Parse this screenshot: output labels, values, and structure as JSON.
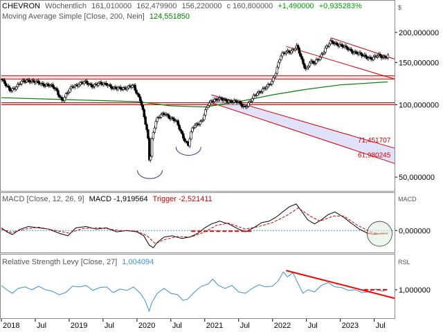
{
  "colors": {
    "price": "#000000",
    "up_candle": "#ffffff",
    "down_candle": "#000000",
    "sma": "#008000",
    "support": "#d40000",
    "channel_fill": "#c8c8f4",
    "macd": "#000000",
    "trigger": "#d40000",
    "zero_line": "#3a8fd0",
    "rsl": "#3a8fd0",
    "up_value": "#00a000",
    "trend": "#ff0000",
    "gray": "#555555",
    "highlight_circle": "#e0f0e0"
  },
  "header": {
    "symbol": "CHEVRON",
    "interval": "Wöchentlich",
    "open": "161,010000",
    "high": "162,479900",
    "low": "156,220000",
    "close": "c 160,800000",
    "change": "+1,490000",
    "change_pct": "+0,935283%"
  },
  "sma_label": "Moving Average Simple [Close, 200, Nein]",
  "sma_value": "124,551850",
  "macd_label": "MACD [Close, 12, 26, 9]",
  "macd_value": "MACD -1,919564",
  "trigger_label": "Trigger -2,521411",
  "rsl_label": "Relative Strength Levy [Close, 27]",
  "rsl_value": "1,004094",
  "chart_data": [
    {
      "type": "candlestick",
      "title": "CHEVRON",
      "scale": "log",
      "ylim": [
        45,
        215
      ],
      "yaxis_unit_label": "$",
      "yticks": [
        {
          "value": 200,
          "label": "200,000000"
        },
        {
          "value": 150,
          "label": "150,000000"
        },
        {
          "value": 100,
          "label": "100,000000"
        },
        {
          "value": 50,
          "label": "50,000000"
        }
      ],
      "xticks": [
        "2018",
        "Jul",
        "2019",
        "Jul",
        "2020",
        "Jul",
        "2021",
        "Jul",
        "2022",
        "Jul",
        "2023",
        "Jul"
      ],
      "x_range": [
        2018.0,
        2023.8
      ],
      "price_waypoints": [
        [
          2018.0,
          128
        ],
        [
          2018.05,
          122
        ],
        [
          2018.12,
          115
        ],
        [
          2018.2,
          118
        ],
        [
          2018.3,
          124
        ],
        [
          2018.4,
          127
        ],
        [
          2018.5,
          124
        ],
        [
          2018.6,
          122
        ],
        [
          2018.7,
          121
        ],
        [
          2018.8,
          116
        ],
        [
          2018.9,
          104
        ],
        [
          2018.96,
          110
        ],
        [
          2019.05,
          120
        ],
        [
          2019.15,
          122
        ],
        [
          2019.25,
          124
        ],
        [
          2019.35,
          120
        ],
        [
          2019.45,
          122
        ],
        [
          2019.55,
          123
        ],
        [
          2019.65,
          116
        ],
        [
          2019.75,
          118
        ],
        [
          2019.85,
          117
        ],
        [
          2019.95,
          120
        ],
        [
          2020.0,
          112
        ],
        [
          2020.05,
          105
        ],
        [
          2020.1,
          90
        ],
        [
          2020.16,
          74
        ],
        [
          2020.19,
          55
        ],
        [
          2020.22,
          72
        ],
        [
          2020.28,
          86
        ],
        [
          2020.35,
          90
        ],
        [
          2020.42,
          92
        ],
        [
          2020.5,
          88
        ],
        [
          2020.58,
          85
        ],
        [
          2020.66,
          76
        ],
        [
          2020.72,
          70
        ],
        [
          2020.76,
          68
        ],
        [
          2020.82,
          80
        ],
        [
          2020.9,
          84
        ],
        [
          2020.96,
          86
        ],
        [
          2021.0,
          92
        ],
        [
          2021.05,
          100
        ],
        [
          2021.12,
          105
        ],
        [
          2021.2,
          106
        ],
        [
          2021.3,
          104
        ],
        [
          2021.4,
          104
        ],
        [
          2021.5,
          102
        ],
        [
          2021.58,
          98
        ],
        [
          2021.66,
          102
        ],
        [
          2021.75,
          110
        ],
        [
          2021.85,
          116
        ],
        [
          2021.95,
          120
        ],
        [
          2022.0,
          126
        ],
        [
          2022.05,
          138
        ],
        [
          2022.12,
          160
        ],
        [
          2022.2,
          165
        ],
        [
          2022.28,
          168
        ],
        [
          2022.36,
          175
        ],
        [
          2022.44,
          150
        ],
        [
          2022.5,
          140
        ],
        [
          2022.55,
          152
        ],
        [
          2022.62,
          148
        ],
        [
          2022.7,
          158
        ],
        [
          2022.78,
          172
        ],
        [
          2022.86,
          182
        ],
        [
          2022.92,
          180
        ],
        [
          2023.0,
          178
        ],
        [
          2023.08,
          172
        ],
        [
          2023.16,
          168
        ],
        [
          2023.24,
          165
        ],
        [
          2023.32,
          160
        ],
        [
          2023.4,
          158
        ],
        [
          2023.48,
          156
        ],
        [
          2023.56,
          160
        ],
        [
          2023.64,
          158
        ],
        [
          2023.72,
          161
        ]
      ],
      "sma_200": {
        "name": "Moving Average Simple [Close, 200, Nein]",
        "points": [
          [
            2018.0,
            107
          ],
          [
            2019.0,
            105
          ],
          [
            2020.0,
            103
          ],
          [
            2020.5,
            99
          ],
          [
            2021.0,
            98
          ],
          [
            2021.5,
            103
          ],
          [
            2022.0,
            110
          ],
          [
            2022.5,
            116
          ],
          [
            2023.0,
            121
          ],
          [
            2023.7,
            124.55
          ]
        ]
      },
      "support_bands": [
        [
          128,
          132
        ],
        [
          100,
          102
        ]
      ],
      "annotations": [
        {
          "label": "71,451707",
          "value": 71.451707
        },
        {
          "label": "61,980245",
          "value": 61.980245
        }
      ],
      "channel": {
        "upper": [
          [
            2021.1,
            110
          ],
          [
            2023.8,
            66
          ]
        ],
        "lower": [
          [
            2021.1,
            102
          ],
          [
            2023.8,
            57
          ]
        ]
      },
      "upper_trend": {
        "upper": [
          [
            2022.86,
            190
          ],
          [
            2023.8,
            155
          ]
        ],
        "lower": [
          [
            2022.2,
            175
          ],
          [
            2023.8,
            128
          ]
        ]
      },
      "resistance_line": [
        [
          2022.86,
          188
        ],
        [
          2023.8,
          155
        ]
      ]
    },
    {
      "type": "line",
      "title": "MACD [Close, 12, 26, 9]",
      "ylim": [
        -15,
        21
      ],
      "yaxis_unit_label": "MACD",
      "yticks": [
        {
          "value": 0,
          "label": "0,000000"
        }
      ],
      "series": [
        {
          "name": "MACD",
          "values": [
            [
              2018.0,
              2
            ],
            [
              2018.08,
              -1
            ],
            [
              2018.16,
              -3
            ],
            [
              2018.28,
              1
            ],
            [
              2018.4,
              3
            ],
            [
              2018.55,
              2
            ],
            [
              2018.7,
              1
            ],
            [
              2018.85,
              -2
            ],
            [
              2018.98,
              -4
            ],
            [
              2019.1,
              2
            ],
            [
              2019.25,
              3
            ],
            [
              2019.4,
              1
            ],
            [
              2019.55,
              2
            ],
            [
              2019.7,
              -1
            ],
            [
              2019.85,
              0
            ],
            [
              2020.0,
              -1
            ],
            [
              2020.1,
              -4
            ],
            [
              2020.18,
              -11
            ],
            [
              2020.24,
              -13
            ],
            [
              2020.3,
              -9
            ],
            [
              2020.4,
              -5
            ],
            [
              2020.52,
              -4
            ],
            [
              2020.66,
              -6
            ],
            [
              2020.78,
              -5
            ],
            [
              2020.9,
              -2
            ],
            [
              2021.0,
              2
            ],
            [
              2021.1,
              5
            ],
            [
              2021.22,
              7
            ],
            [
              2021.35,
              5
            ],
            [
              2021.5,
              1
            ],
            [
              2021.6,
              -1
            ],
            [
              2021.72,
              2
            ],
            [
              2021.84,
              6
            ],
            [
              2021.95,
              7
            ],
            [
              2022.05,
              10
            ],
            [
              2022.15,
              14
            ],
            [
              2022.25,
              18
            ],
            [
              2022.35,
              20
            ],
            [
              2022.45,
              13
            ],
            [
              2022.52,
              8
            ],
            [
              2022.62,
              5
            ],
            [
              2022.72,
              8
            ],
            [
              2022.82,
              12
            ],
            [
              2022.92,
              14
            ],
            [
              2023.05,
              10
            ],
            [
              2023.15,
              6
            ],
            [
              2023.28,
              1
            ],
            [
              2023.4,
              -2
            ],
            [
              2023.5,
              -3
            ],
            [
              2023.6,
              -2.5
            ],
            [
              2023.7,
              -1.92
            ]
          ]
        },
        {
          "name": "Trigger",
          "values": [
            [
              2018.0,
              1
            ],
            [
              2018.15,
              -1.5
            ],
            [
              2018.35,
              1
            ],
            [
              2018.55,
              2.5
            ],
            [
              2018.8,
              0
            ],
            [
              2019.0,
              -2
            ],
            [
              2019.2,
              1.5
            ],
            [
              2019.45,
              2
            ],
            [
              2019.75,
              0
            ],
            [
              2020.0,
              -0.5
            ],
            [
              2020.15,
              -4
            ],
            [
              2020.27,
              -10
            ],
            [
              2020.4,
              -7
            ],
            [
              2020.6,
              -4.5
            ],
            [
              2020.8,
              -5
            ],
            [
              2021.0,
              -1
            ],
            [
              2021.18,
              4
            ],
            [
              2021.35,
              5.5
            ],
            [
              2021.6,
              1
            ],
            [
              2021.8,
              3
            ],
            [
              2022.0,
              6
            ],
            [
              2022.2,
              11
            ],
            [
              2022.38,
              17
            ],
            [
              2022.55,
              11
            ],
            [
              2022.7,
              7
            ],
            [
              2022.9,
              11
            ],
            [
              2023.05,
              11
            ],
            [
              2023.25,
              4
            ],
            [
              2023.45,
              -1
            ],
            [
              2023.6,
              -2.8
            ],
            [
              2023.7,
              -2.52
            ]
          ]
        }
      ],
      "dashed_segments": [
        {
          "x": [
            2020.8,
            2021.7
          ],
          "y": -0.5
        },
        {
          "x": [
            2023.4,
            2023.7
          ],
          "y": -2.2
        }
      ]
    },
    {
      "type": "line",
      "title": "Relative Strength Levy [Close, 27]",
      "ylim": [
        0.62,
        1.32
      ],
      "yaxis_unit_label": "RSL",
      "yticks": [
        {
          "value": 1.0,
          "label": "1,000000"
        }
      ],
      "series": [
        {
          "name": "Relative Strength Levy",
          "values": [
            [
              2018.0,
              1.06
            ],
            [
              2018.08,
              1.0
            ],
            [
              2018.16,
              0.95
            ],
            [
              2018.25,
              1.02
            ],
            [
              2018.35,
              1.04
            ],
            [
              2018.45,
              1.0
            ],
            [
              2018.55,
              1.05
            ],
            [
              2018.65,
              1.0
            ],
            [
              2018.75,
              0.98
            ],
            [
              2018.85,
              0.93
            ],
            [
              2018.95,
              0.96
            ],
            [
              2019.05,
              1.05
            ],
            [
              2019.15,
              1.04
            ],
            [
              2019.25,
              1.06
            ],
            [
              2019.35,
              0.99
            ],
            [
              2019.45,
              1.03
            ],
            [
              2019.55,
              1.04
            ],
            [
              2019.65,
              0.96
            ],
            [
              2019.75,
              1.01
            ],
            [
              2019.85,
              0.99
            ],
            [
              2019.95,
              1.04
            ],
            [
              2020.05,
              0.95
            ],
            [
              2020.12,
              0.85
            ],
            [
              2020.18,
              0.7
            ],
            [
              2020.22,
              0.82
            ],
            [
              2020.3,
              0.95
            ],
            [
              2020.4,
              1.02
            ],
            [
              2020.5,
              0.95
            ],
            [
              2020.6,
              0.93
            ],
            [
              2020.68,
              0.85
            ],
            [
              2020.75,
              0.87
            ],
            [
              2020.85,
              0.97
            ],
            [
              2020.95,
              1.05
            ],
            [
              2021.05,
              1.08
            ],
            [
              2021.12,
              1.15
            ],
            [
              2021.2,
              1.06
            ],
            [
              2021.3,
              1.02
            ],
            [
              2021.4,
              1.06
            ],
            [
              2021.5,
              0.97
            ],
            [
              2021.6,
              0.95
            ],
            [
              2021.7,
              1.02
            ],
            [
              2021.8,
              1.07
            ],
            [
              2021.9,
              1.04
            ],
            [
              2022.0,
              1.05
            ],
            [
              2022.08,
              1.12
            ],
            [
              2022.16,
              1.25
            ],
            [
              2022.22,
              1.18
            ],
            [
              2022.3,
              1.24
            ],
            [
              2022.38,
              1.08
            ],
            [
              2022.45,
              0.95
            ],
            [
              2022.52,
              1.0
            ],
            [
              2022.62,
              0.97
            ],
            [
              2022.72,
              1.06
            ],
            [
              2022.82,
              1.1
            ],
            [
              2022.92,
              1.04
            ],
            [
              2023.02,
              1.03
            ],
            [
              2023.12,
              0.99
            ],
            [
              2023.22,
              1.0
            ],
            [
              2023.32,
              0.96
            ],
            [
              2023.42,
              0.97
            ],
            [
              2023.52,
              1.01
            ],
            [
              2023.62,
              0.98
            ],
            [
              2023.7,
              1.004
            ]
          ]
        }
      ],
      "trend_line": [
        [
          2022.2,
          1.27
        ],
        [
          2023.8,
          0.88
        ]
      ],
      "dashed_segment": {
        "x": [
          2023.35,
          2023.7
        ],
        "y": 1.0
      }
    }
  ]
}
